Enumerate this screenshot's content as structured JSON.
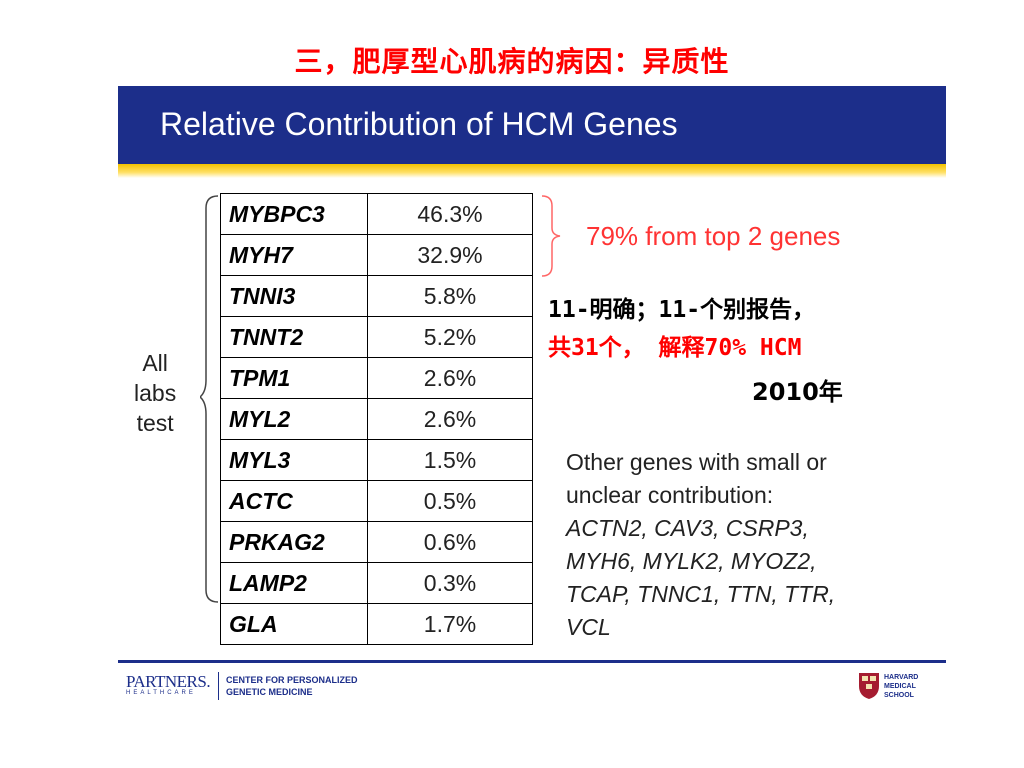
{
  "page_title": "三，肥厚型心肌病的病因：异质性",
  "slide": {
    "header_title": "Relative Contribution of HCM Genes",
    "bracket_label_lines": [
      "All",
      "labs",
      "test"
    ],
    "gene_table": [
      {
        "gene": "MYBPC3",
        "percent": "46.3%"
      },
      {
        "gene": "MYH7",
        "percent": "32.9%"
      },
      {
        "gene": "TNNI3",
        "percent": "5.8%"
      },
      {
        "gene": "TNNT2",
        "percent": "5.2%"
      },
      {
        "gene": "TPM1",
        "percent": "2.6%"
      },
      {
        "gene": "MYL2",
        "percent": "2.6%"
      },
      {
        "gene": "MYL3",
        "percent": "1.5%"
      },
      {
        "gene": "ACTC",
        "percent": "0.5%"
      },
      {
        "gene": "PRKAG2",
        "percent": "0.6%"
      },
      {
        "gene": "LAMP2",
        "percent": "0.3%"
      },
      {
        "gene": "GLA",
        "percent": "1.7%"
      }
    ],
    "top2_note": "79% from top 2 genes",
    "cn_note_line1": "11-明确；11-个别报告，",
    "cn_note_line2": "共31个， 解释70% HCM",
    "cn_year": "2010年",
    "other_intro_line1": "Other genes with small or",
    "other_intro_line2": "unclear contribution:",
    "other_genes_lines": [
      "ACTN2, CAV3, CSRP3,",
      "MYH6, MYLK2, MYOZ2,",
      "TCAP, TNNC1, TTN, TTR,",
      "VCL"
    ]
  },
  "footer": {
    "partners_logo": "PARTNERS.",
    "partners_sub": "HEALTHCARE",
    "center_line1": "CENTER FOR PERSONALIZED",
    "center_line2": "GENETIC MEDICINE",
    "hms_line1": "HARVARD",
    "hms_line2": "MEDICAL",
    "hms_line3": "SCHOOL"
  },
  "colors": {
    "header_blue": "#1c2e8a",
    "accent_red": "#ff0000",
    "note_red": "#ff3333",
    "gold": "#f2c200"
  }
}
